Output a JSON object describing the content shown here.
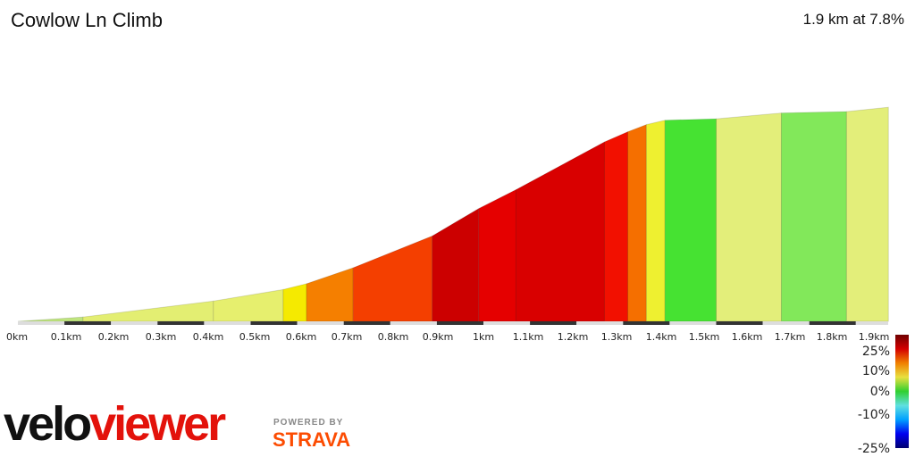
{
  "title": "Cowlow Ln Climb",
  "summary": "1.9 km at 7.8%",
  "chart_data": {
    "type": "area",
    "title": "Cowlow Ln Climb",
    "distance_km": [
      0,
      0.14,
      0.42,
      0.57,
      0.62,
      0.72,
      0.89,
      0.99,
      1.07,
      1.26,
      1.31,
      1.35,
      1.39,
      1.5,
      1.64,
      1.78,
      1.87
    ],
    "elevation_rel_m": [
      0,
      3,
      14,
      22,
      26,
      37,
      59,
      78,
      91,
      124,
      131,
      136,
      139,
      140,
      144,
      145,
      148
    ],
    "segment_colors": [
      "#bfe57e",
      "#e3ee72",
      "#e6ef6e",
      "#f5ea00",
      "#f57f00",
      "#f43f00",
      "#cc0000",
      "#e50000",
      "#d90000",
      "#f21000",
      "#f56f00",
      "#eef030",
      "#46e232",
      "#e3ee7a",
      "#82e85a",
      "#e3ee7a"
    ],
    "x_ticks": [
      "0km",
      "0.1km",
      "0.2km",
      "0.3km",
      "0.4km",
      "0.5km",
      "0.6km",
      "0.7km",
      "0.8km",
      "0.9km",
      "1km",
      "1.1km",
      "1.2km",
      "1.3km",
      "1.4km",
      "1.5km",
      "1.6km",
      "1.7km",
      "1.8km",
      "1.9km"
    ],
    "colorbar": {
      "labels": [
        "25%",
        "10%",
        "0%",
        "-10%",
        "-25%"
      ],
      "stops": [
        "#6e0000",
        "#d40000",
        "#f08000",
        "#e8e040",
        "#30d030",
        "#60e0e0",
        "#00a0ff",
        "#0000f0",
        "#000070"
      ]
    },
    "grid": false
  },
  "branding": {
    "logo_part1": "velo",
    "logo_part2": "viewer",
    "powered": "POWERED BY",
    "strava": "STRAVA"
  }
}
